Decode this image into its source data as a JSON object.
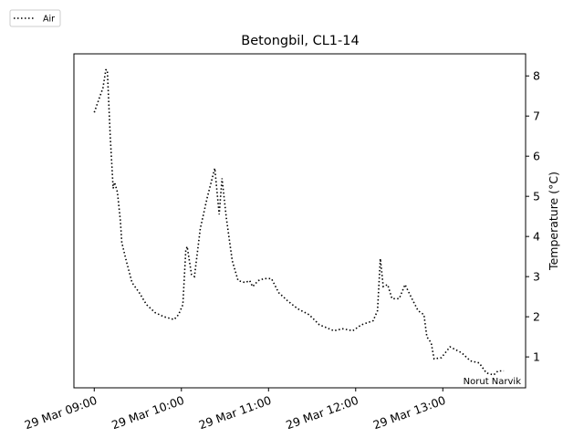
{
  "chart_data": {
    "type": "line",
    "title": "Betongbil, CL1-14",
    "ylabel": "Temperature (°C)",
    "annotation": "Norut Narvik",
    "legend": "upper left",
    "x": [
      "29 Mar 09:00",
      "29 Mar 09:03",
      "29 Mar 09:06",
      "29 Mar 09:08",
      "29 Mar 09:09",
      "29 Mar 09:11",
      "29 Mar 09:13",
      "29 Mar 09:14",
      "29 Mar 09:16",
      "29 Mar 09:18",
      "29 Mar 09:19",
      "29 Mar 09:22",
      "29 Mar 09:26",
      "29 Mar 09:31",
      "29 Mar 09:36",
      "29 Mar 09:42",
      "29 Mar 09:48",
      "29 Mar 09:55",
      "29 Mar 09:58",
      "29 Mar 10:01",
      "29 Mar 10:03",
      "29 Mar 10:04",
      "29 Mar 10:07",
      "29 Mar 10:09",
      "29 Mar 10:13",
      "29 Mar 10:18",
      "29 Mar 10:23",
      "29 Mar 10:26",
      "29 Mar 10:28",
      "29 Mar 10:31",
      "29 Mar 10:35",
      "29 Mar 10:39",
      "29 Mar 10:44",
      "29 Mar 10:47",
      "29 Mar 10:49",
      "29 Mar 10:53",
      "29 Mar 10:57",
      "29 Mar 11:02",
      "29 Mar 11:07",
      "29 Mar 11:13",
      "29 Mar 11:20",
      "29 Mar 11:28",
      "29 Mar 11:35",
      "29 Mar 11:45",
      "29 Mar 11:51",
      "29 Mar 11:58",
      "29 Mar 12:04",
      "29 Mar 12:12",
      "29 Mar 12:15",
      "29 Mar 12:17",
      "29 Mar 12:19",
      "29 Mar 12:22",
      "29 Mar 12:25",
      "29 Mar 12:30",
      "29 Mar 12:34",
      "29 Mar 12:38",
      "29 Mar 12:43",
      "29 Mar 12:47",
      "29 Mar 12:49",
      "29 Mar 12:52",
      "29 Mar 12:54",
      "29 Mar 12:59",
      "29 Mar 13:05",
      "29 Mar 13:13",
      "29 Mar 13:19",
      "29 Mar 13:25",
      "29 Mar 13:30",
      "29 Mar 13:35",
      "29 Mar 13:38",
      "29 Mar 13:42"
    ],
    "series": [
      {
        "name": "Air",
        "color": "#000000",
        "values": [
          7.09,
          7.4,
          7.7,
          8.15,
          8.15,
          6.5,
          5.2,
          5.35,
          5.1,
          4.4,
          3.85,
          3.4,
          2.85,
          2.6,
          2.3,
          2.1,
          2.0,
          1.93,
          2.05,
          2.3,
          3.65,
          3.75,
          3.05,
          3.0,
          4.2,
          5.0,
          5.7,
          4.55,
          5.45,
          4.45,
          3.4,
          2.9,
          2.85,
          2.9,
          2.75,
          2.9,
          2.95,
          2.95,
          2.6,
          2.4,
          2.2,
          2.05,
          1.8,
          1.65,
          1.7,
          1.65,
          1.8,
          1.9,
          2.15,
          3.45,
          2.75,
          2.8,
          2.45,
          2.45,
          2.8,
          2.5,
          2.15,
          2.05,
          1.5,
          1.35,
          0.95,
          0.98,
          1.25,
          1.1,
          0.9,
          0.85,
          0.6,
          0.55,
          0.65,
          0.65
        ]
      }
    ],
    "xlim": [
      "29 Mar 08:46",
      "29 Mar 13:57"
    ],
    "xticks": [
      "29 Mar 09:00",
      "29 Mar 10:00",
      "29 Mar 11:00",
      "29 Mar 12:00",
      "29 Mar 13:00"
    ],
    "ylim": [
      0.23,
      8.55
    ],
    "yticks": [
      1,
      2,
      3,
      4,
      5,
      6,
      7,
      8
    ]
  }
}
